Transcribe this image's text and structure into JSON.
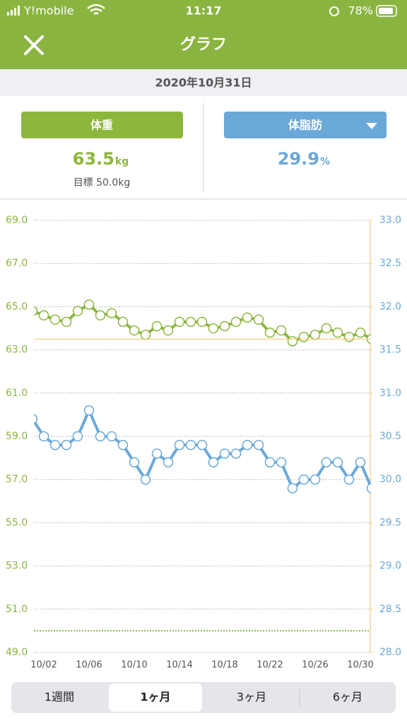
{
  "status_bar": {
    "carrier": "Y!mobile",
    "time": "11:17",
    "battery": "78%"
  },
  "header": {
    "title": "グラフ"
  },
  "date": "2020年10月31日",
  "cards": {
    "weight": {
      "label": "体重",
      "value": "63.5",
      "unit": "kg",
      "target": "目標 50.0kg"
    },
    "body_fat": {
      "label": "体脂肪",
      "value": "29.9",
      "unit": "%"
    }
  },
  "chart_data": {
    "type": "line",
    "categories": [
      null,
      "10/02",
      null,
      null,
      null,
      "10/06",
      null,
      null,
      null,
      "10/10",
      null,
      null,
      null,
      "10/14",
      null,
      null,
      null,
      "10/18",
      null,
      null,
      null,
      "10/22",
      null,
      null,
      null,
      "10/26",
      null,
      null,
      null,
      "10/30",
      null
    ],
    "series": [
      {
        "name": "体重",
        "color": "#8db63c",
        "axis": "y",
        "values": [
          64.8,
          64.6,
          64.4,
          64.3,
          64.8,
          65.1,
          64.6,
          64.7,
          64.3,
          63.9,
          63.7,
          64.1,
          63.9,
          64.3,
          64.3,
          64.3,
          64.0,
          64.1,
          64.3,
          64.5,
          64.4,
          63.8,
          63.9,
          63.4,
          63.6,
          63.7,
          64.0,
          63.8,
          63.6,
          63.8,
          63.5
        ]
      },
      {
        "name": "体脂肪",
        "color": "#6aa8d8",
        "axis": "y2",
        "values": [
          30.7,
          30.5,
          30.4,
          30.4,
          30.5,
          30.8,
          30.5,
          30.5,
          30.4,
          30.2,
          30.0,
          30.3,
          30.2,
          30.4,
          30.4,
          30.4,
          30.2,
          30.3,
          30.3,
          30.4,
          30.4,
          30.2,
          30.2,
          29.9,
          30.0,
          30.0,
          30.2,
          30.2,
          30.0,
          30.2,
          29.9
        ]
      }
    ],
    "target": 50,
    "ylim": [
      49,
      69
    ],
    "yticks": [
      {
        "value": 49,
        "label": "49.0"
      },
      {
        "value": 51,
        "label": "51.0"
      },
      {
        "value": 53,
        "label": "53.0"
      },
      {
        "value": 55,
        "label": "55.0"
      },
      {
        "value": 57,
        "label": "57.0"
      },
      {
        "value": 59,
        "label": "59.0"
      },
      {
        "value": 61,
        "label": "61.0"
      },
      {
        "value": 63,
        "label": "63.0"
      },
      {
        "value": 65,
        "label": "65.0"
      },
      {
        "value": 67,
        "label": "67.0"
      },
      {
        "value": 69,
        "label": "69.0"
      }
    ],
    "y2lim": [
      28,
      33
    ],
    "y2ticks": [
      {
        "value": 28,
        "label": "28.0"
      },
      {
        "value": 28.5,
        "label": "28.5"
      },
      {
        "value": 29,
        "label": "29.0"
      },
      {
        "value": 29.5,
        "label": "29.5"
      },
      {
        "value": 30,
        "label": "30.0"
      },
      {
        "value": 30.5,
        "label": "30.5"
      },
      {
        "value": 31,
        "label": "31.0"
      },
      {
        "value": 31.5,
        "label": "31.5"
      },
      {
        "value": 32,
        "label": "32.0"
      },
      {
        "value": 32.5,
        "label": "32.5"
      },
      {
        "value": 33,
        "label": "33.0"
      }
    ],
    "grid": true
  },
  "tabs": [
    "1週間",
    "1ヶ月",
    "3ヶ月",
    "6ヶ月"
  ],
  "selected_tab": 1
}
